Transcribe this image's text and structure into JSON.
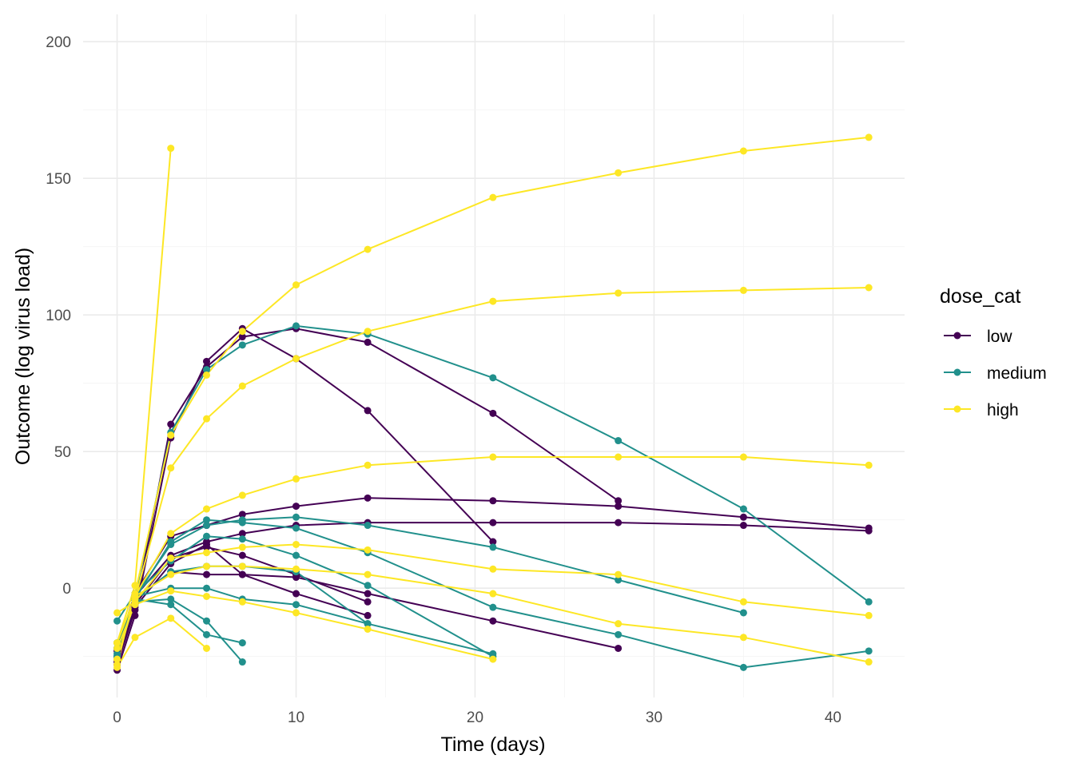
{
  "chart_data": {
    "type": "line",
    "xlabel": "Time (days)",
    "ylabel": "Outcome (log virus load)",
    "xlim": [
      -1.9,
      44.0
    ],
    "ylim": [
      -40,
      210
    ],
    "x_ticks": [
      0,
      10,
      20,
      30,
      40
    ],
    "y_ticks": [
      0,
      50,
      100,
      150,
      200
    ],
    "grid": true,
    "legend": {
      "title": "dose_cat",
      "placement": "right",
      "entries": [
        {
          "label": "low",
          "color": "#440154"
        },
        {
          "label": "medium",
          "color": "#21908C"
        },
        {
          "label": "high",
          "color": "#FDE725"
        }
      ]
    },
    "series": [
      {
        "group": "low",
        "x": [
          0,
          1,
          3,
          5,
          7,
          10,
          14,
          21,
          28
        ],
        "y": [
          -28,
          -8,
          60,
          81,
          92,
          95,
          90,
          64,
          32
        ]
      },
      {
        "group": "low",
        "x": [
          0,
          1,
          3,
          5,
          7,
          10,
          14,
          21
        ],
        "y": [
          -30,
          -10,
          55,
          83,
          95,
          84,
          65,
          17
        ]
      },
      {
        "group": "low",
        "x": [
          0,
          1,
          3,
          5,
          7,
          10,
          14,
          21,
          28,
          35,
          42
        ],
        "y": [
          -22,
          -2,
          19,
          23,
          27,
          30,
          33,
          32,
          30,
          26,
          22
        ]
      },
      {
        "group": "low",
        "x": [
          0,
          1,
          3,
          5,
          7,
          10,
          14,
          21,
          28,
          35,
          42
        ],
        "y": [
          -25,
          -3,
          12,
          17,
          20,
          23,
          24,
          24,
          24,
          23,
          21
        ]
      },
      {
        "group": "low",
        "x": [
          0,
          1,
          3,
          5,
          7,
          10,
          14
        ],
        "y": [
          -27,
          -6,
          11,
          15,
          12,
          5,
          -5
        ]
      },
      {
        "group": "low",
        "x": [
          0,
          1,
          3,
          5,
          7,
          10,
          14
        ],
        "y": [
          -26,
          -7,
          9,
          16,
          5,
          -2,
          -10
        ]
      },
      {
        "group": "low",
        "x": [
          0,
          1,
          3,
          5,
          7,
          10,
          14,
          21,
          28
        ],
        "y": [
          -23,
          -4,
          6,
          5,
          5,
          4,
          -2,
          -12,
          -22
        ]
      },
      {
        "group": "medium",
        "x": [
          0,
          1,
          3,
          5,
          7,
          10,
          14,
          21,
          28,
          35,
          42
        ],
        "y": [
          -24,
          -3,
          57,
          80,
          89,
          96,
          93,
          77,
          54,
          29,
          -5
        ]
      },
      {
        "group": "medium",
        "x": [
          0,
          1,
          3,
          5,
          7,
          10,
          14,
          21,
          28,
          35,
          42
        ],
        "y": [
          -20,
          -4,
          17,
          25,
          24,
          22,
          13,
          -7,
          -17,
          -29,
          -23
        ]
      },
      {
        "group": "medium",
        "x": [
          0,
          1,
          3,
          5,
          7,
          10,
          14,
          21,
          28,
          35
        ],
        "y": [
          -22,
          -3,
          16,
          23,
          25,
          26,
          23,
          15,
          3,
          -9
        ]
      },
      {
        "group": "medium",
        "x": [
          0,
          1,
          3,
          5,
          7,
          10,
          14,
          21
        ],
        "y": [
          -12,
          -2,
          10,
          19,
          18,
          12,
          1,
          -25
        ]
      },
      {
        "group": "medium",
        "x": [
          0,
          1,
          3,
          5,
          7,
          10,
          14,
          21
        ],
        "y": [
          -20,
          -4,
          6,
          8,
          8,
          6,
          -13,
          -24
        ]
      },
      {
        "group": "medium",
        "x": [
          0,
          1,
          3,
          5,
          7
        ],
        "y": [
          -25,
          -5,
          -4,
          -12,
          -27
        ]
      },
      {
        "group": "medium",
        "x": [
          0,
          1,
          3,
          5,
          7,
          10,
          14
        ],
        "y": [
          -25,
          -3,
          0,
          0,
          -4,
          -6,
          -13
        ]
      },
      {
        "group": "medium",
        "x": [
          0,
          1,
          3,
          5,
          7
        ],
        "y": [
          -22,
          -4,
          -6,
          -17,
          -20
        ]
      },
      {
        "group": "high",
        "x": [
          0,
          1,
          3
        ],
        "y": [
          -20,
          1,
          161
        ]
      },
      {
        "group": "high",
        "x": [
          0,
          1,
          3,
          5,
          7,
          10,
          14,
          21,
          28,
          35,
          42
        ],
        "y": [
          -28,
          -2,
          56,
          78,
          94,
          111,
          124,
          143,
          152,
          160,
          165
        ]
      },
      {
        "group": "high",
        "x": [
          0,
          1,
          3,
          5,
          7,
          10,
          14,
          21,
          28,
          35,
          42
        ],
        "y": [
          -26,
          -4,
          44,
          62,
          74,
          84,
          94,
          105,
          108,
          109,
          110
        ]
      },
      {
        "group": "high",
        "x": [
          0,
          1,
          3,
          5,
          7,
          10,
          14,
          21,
          28,
          35,
          42
        ],
        "y": [
          -20,
          -3,
          20,
          29,
          34,
          40,
          45,
          48,
          48,
          48,
          45
        ]
      },
      {
        "group": "high",
        "x": [
          0,
          1,
          3,
          5,
          7,
          10,
          14,
          21,
          28,
          35,
          42
        ],
        "y": [
          -9,
          -5,
          11,
          13,
          15,
          16,
          14,
          7,
          5,
          -5,
          -10
        ]
      },
      {
        "group": "high",
        "x": [
          0,
          1,
          3,
          5,
          7,
          10,
          14,
          21,
          28,
          35,
          42
        ],
        "y": [
          -26,
          -3,
          5,
          8,
          8,
          7,
          5,
          -2,
          -13,
          -18,
          -27
        ]
      },
      {
        "group": "high",
        "x": [
          0,
          1,
          3,
          5
        ],
        "y": [
          -29,
          -18,
          -11,
          -22
        ]
      },
      {
        "group": "high",
        "x": [
          0,
          1,
          3,
          5,
          7,
          10,
          14,
          21
        ],
        "y": [
          -22,
          -6,
          -1,
          -3,
          -5,
          -9,
          -15,
          -26
        ]
      }
    ]
  }
}
